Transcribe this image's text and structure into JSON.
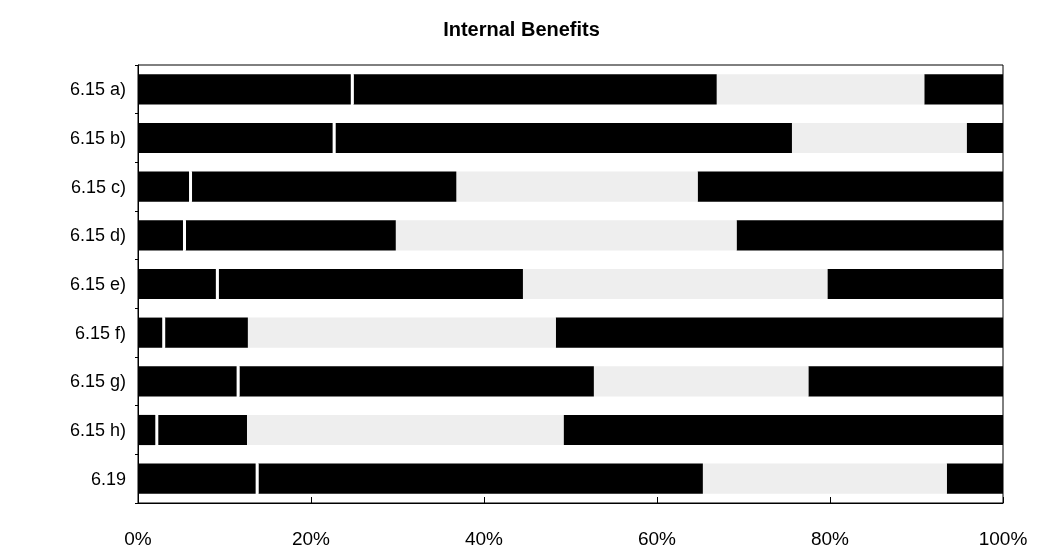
{
  "chart_data": {
    "type": "bar",
    "title": "Internal Benefits",
    "orientation": "horizontal",
    "stacked": true,
    "categories": [
      "6.15 a)",
      "6.15 b)",
      "6.15 c)",
      "6.15 d)",
      "6.15 e)",
      "6.15 f)",
      "6.15 g)",
      "6.15 h)",
      "6.19"
    ],
    "series": [
      {
        "color": "#000000",
        "values": [
          24.6,
          22.5,
          5.9,
          5.2,
          9.0,
          2.8,
          11.4,
          2.0,
          13.6
        ]
      },
      {
        "color": "#ffffff",
        "values": [
          0.3,
          0.3,
          0.3,
          0.3,
          0.3,
          0.3,
          0.3,
          0.3,
          0.3
        ]
      },
      {
        "color": "#000000",
        "values": [
          42.0,
          52.8,
          30.6,
          24.3,
          35.2,
          9.6,
          41.0,
          10.3,
          51.4
        ]
      },
      {
        "color": "#eeeeee",
        "values": [
          24.0,
          20.2,
          27.9,
          39.4,
          35.2,
          35.6,
          24.8,
          36.6,
          28.2
        ]
      },
      {
        "color": "#000000",
        "values": [
          9.1,
          4.2,
          35.3,
          30.8,
          20.3,
          51.7,
          22.5,
          50.8,
          6.5
        ]
      }
    ],
    "xlim": [
      0,
      100
    ],
    "xticks": [
      {
        "value": 0,
        "label": "0%"
      },
      {
        "value": 20,
        "label": "20%"
      },
      {
        "value": 40,
        "label": "40%"
      },
      {
        "value": 60,
        "label": "60%"
      },
      {
        "value": 80,
        "label": "80%"
      },
      {
        "value": 100,
        "label": "100%"
      }
    ],
    "grid": false
  }
}
